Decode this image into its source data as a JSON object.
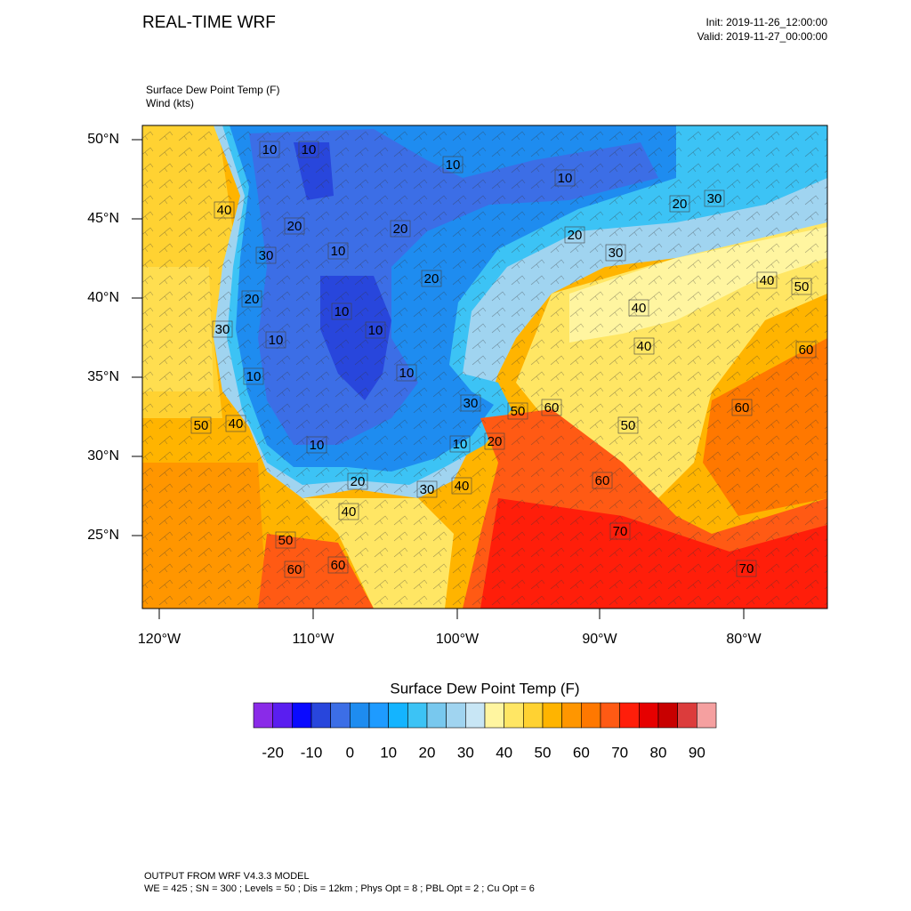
{
  "header": {
    "title": "REAL-TIME WRF",
    "init": "Init: 2019-11-26_12:00:00",
    "valid": "Valid: 2019-11-27_00:00:00"
  },
  "map": {
    "fields": [
      "Surface Dew Point Temp   (F)",
      "Wind   (kts)"
    ],
    "lat_labels": [
      "50°N",
      "45°N",
      "40°N",
      "35°N",
      "30°N",
      "25°N"
    ],
    "lon_labels": [
      "120°W",
      "110°W",
      "100°W",
      "90°W",
      "80°W"
    ],
    "contour_labels": [
      "10",
      "10",
      "10",
      "10",
      "20",
      "30",
      "40",
      "20",
      "20",
      "20",
      "30",
      "10",
      "30",
      "20",
      "40",
      "50",
      "20",
      "10",
      "40",
      "30",
      "10",
      "10",
      "40",
      "60",
      "10",
      "10",
      "30",
      "50",
      "60",
      "60",
      "50",
      "40",
      "50",
      "10",
      "10",
      "20",
      "20",
      "30",
      "40",
      "60",
      "40",
      "70",
      "50",
      "60",
      "60",
      "70"
    ]
  },
  "colorbar": {
    "title": "Surface Dew Point Temp  (F)",
    "colors": [
      "#8a2be8",
      "#5a1ef0",
      "#0a0aff",
      "#2846dc",
      "#3c6ee6",
      "#1e8cf0",
      "#1e9bff",
      "#14b4ff",
      "#3cc3f5",
      "#78c8ee",
      "#a0d4f0",
      "#c8e6f5",
      "#fff5a0",
      "#ffe664",
      "#ffd232",
      "#ffb400",
      "#ff9600",
      "#ff7800",
      "#ff5a14",
      "#ff1e0a",
      "#e60000",
      "#c80000",
      "#dc3c3c",
      "#f5a0a0"
    ],
    "labels": [
      "-20",
      "-10",
      "0",
      "10",
      "20",
      "30",
      "40",
      "50",
      "60",
      "70",
      "80",
      "90"
    ]
  },
  "footer": {
    "line1": "OUTPUT FROM WRF V4.3.3 MODEL",
    "line2": "WE = 425 ; SN = 300 ; Levels = 50 ; Dis = 12km ; Phys Opt = 8 ; PBL Opt = 2 ; Cu Opt = 6"
  }
}
